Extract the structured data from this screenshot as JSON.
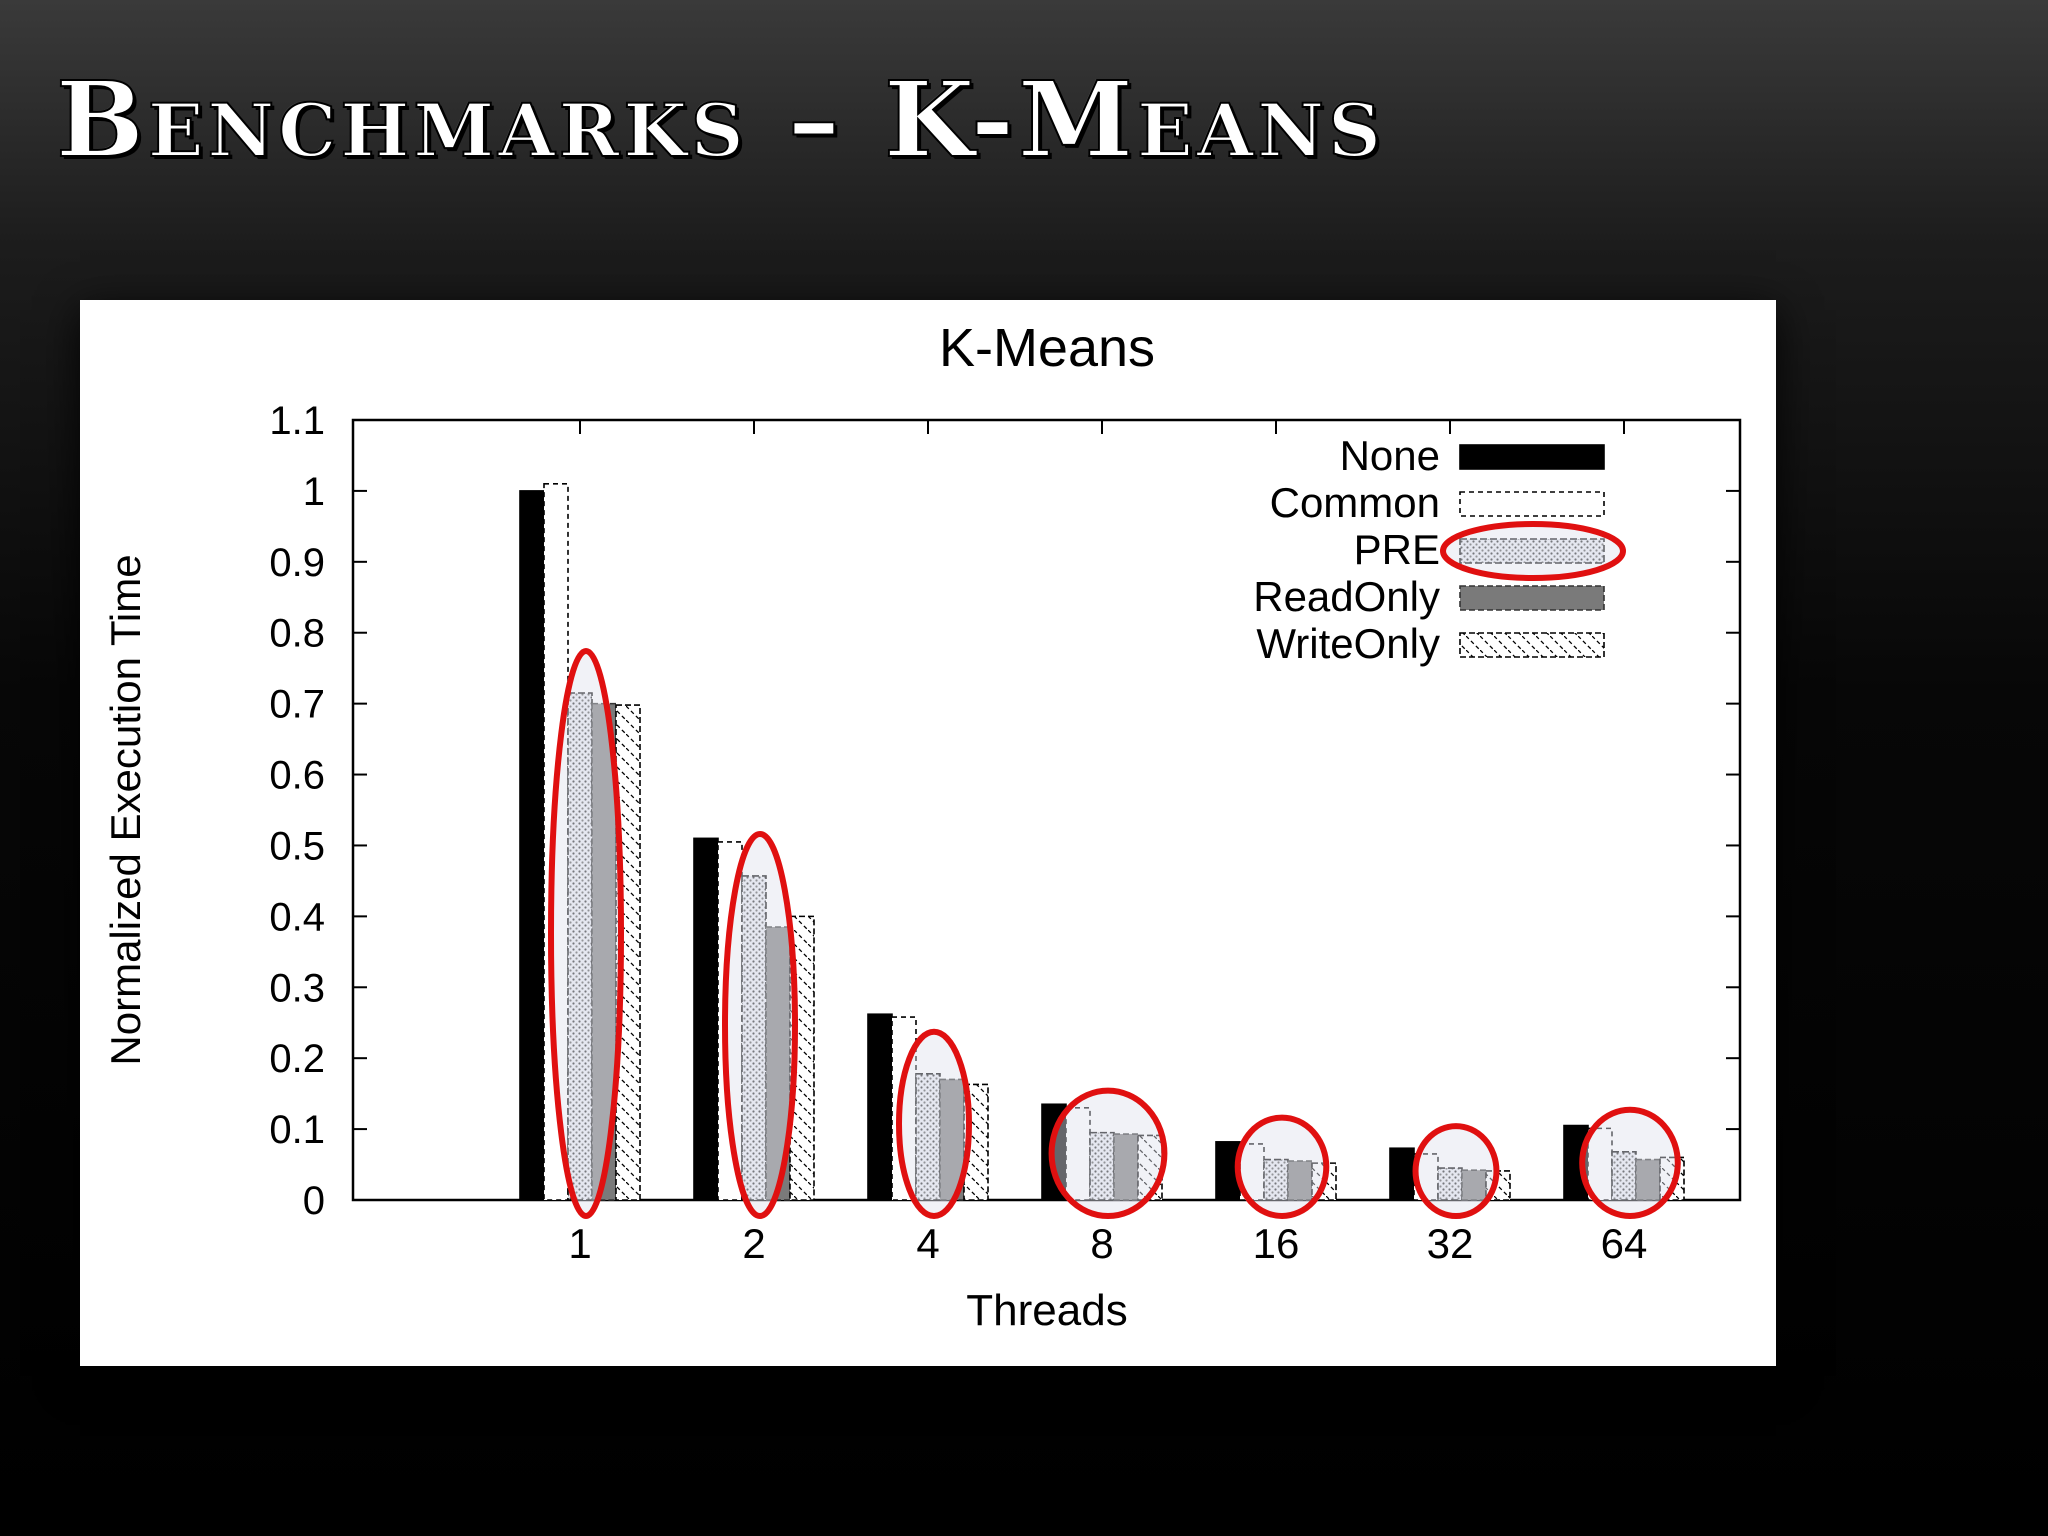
{
  "slide": {
    "title": "Benchmarks – K-Means"
  },
  "colors": {
    "highlight": "#e01010",
    "highlight_fill": "#dfe3ee",
    "none_bar": "#000000",
    "readonly_bar": "#7a7a7a"
  },
  "chart_data": {
    "type": "bar",
    "title": "K-Means",
    "xlabel": "Threads",
    "ylabel": "Normalized Execution Time",
    "categories": [
      "1",
      "2",
      "4",
      "8",
      "16",
      "32",
      "64"
    ],
    "ylim": [
      0,
      1.1
    ],
    "yticks": [
      "0",
      "0.1",
      "0.2",
      "0.3",
      "0.4",
      "0.5",
      "0.6",
      "0.7",
      "0.8",
      "0.9",
      "1",
      "1.1"
    ],
    "legend_position": "top-right",
    "grid": false,
    "series": [
      {
        "name": "None",
        "values": [
          1.0,
          0.51,
          0.262,
          0.135,
          0.082,
          0.073,
          0.105
        ]
      },
      {
        "name": "Common",
        "values": [
          1.01,
          0.505,
          0.258,
          0.13,
          0.079,
          0.065,
          0.101
        ]
      },
      {
        "name": "PRE",
        "values": [
          0.715,
          0.457,
          0.178,
          0.095,
          0.057,
          0.045,
          0.068
        ]
      },
      {
        "name": "ReadOnly",
        "values": [
          0.7,
          0.385,
          0.17,
          0.093,
          0.055,
          0.042,
          0.057
        ]
      },
      {
        "name": "WriteOnly",
        "values": [
          0.698,
          0.4,
          0.163,
          0.091,
          0.052,
          0.041,
          0.06
        ]
      }
    ],
    "highlighted_series": "PRE"
  }
}
